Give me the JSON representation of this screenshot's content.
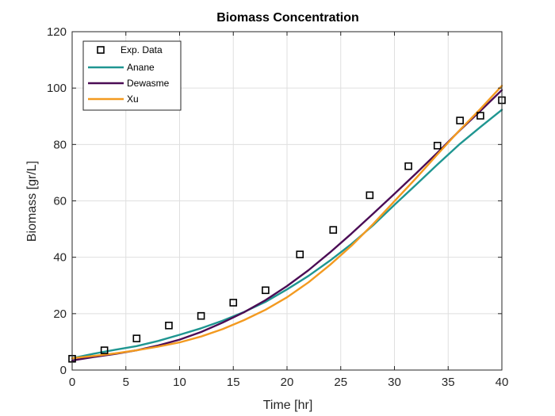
{
  "chart_data": {
    "type": "line",
    "title": "Biomass Concentration",
    "xlabel": "Time [hr]",
    "ylabel": "Biomass [gr/L]",
    "xlim": [
      0,
      40
    ],
    "ylim": [
      0,
      120
    ],
    "xticks": [
      0,
      5,
      10,
      15,
      20,
      25,
      30,
      35,
      40
    ],
    "yticks": [
      0,
      20,
      40,
      60,
      80,
      100,
      120
    ],
    "grid": true,
    "legend_position": "top-left",
    "scatter": {
      "name": "Exp. Data",
      "marker": "square",
      "color": "#000000",
      "x": [
        0,
        3,
        6,
        9,
        12,
        15,
        18,
        21.2,
        24.3,
        27.7,
        31.3,
        34,
        36.1,
        38,
        40
      ],
      "y": [
        4,
        7,
        11.2,
        15.8,
        19.2,
        23.9,
        28.3,
        41,
        49.7,
        62,
        72.3,
        79.6,
        88.5,
        90.2,
        95.7
      ]
    },
    "series": [
      {
        "name": "Anane",
        "color": "#1f9691",
        "x": [
          0,
          2,
          4,
          6,
          8,
          10,
          12,
          14,
          16,
          18,
          20,
          22,
          24,
          26,
          28,
          30,
          32,
          34,
          36,
          38,
          40
        ],
        "y": [
          4.2,
          5.8,
          7.2,
          8.5,
          10.3,
          12.5,
          14.8,
          17.5,
          20.6,
          24.2,
          28.6,
          33.4,
          38.8,
          44.7,
          51.3,
          58.6,
          65.7,
          72.9,
          79.9,
          86.2,
          92.3
        ]
      },
      {
        "name": "Dewasme",
        "color": "#4b0c55",
        "x": [
          0,
          2,
          4,
          6,
          8,
          10,
          12,
          14,
          16,
          18,
          20,
          22,
          24,
          26,
          28,
          30,
          32,
          34,
          36,
          38,
          40
        ],
        "y": [
          3.4,
          4.6,
          5.7,
          7,
          8.7,
          10.8,
          13.5,
          16.8,
          20.5,
          24.8,
          29.8,
          35.4,
          41.7,
          48.4,
          55.4,
          62.5,
          69.7,
          77.1,
          84.7,
          91.9,
          99.3
        ]
      },
      {
        "name": "Xu",
        "color": "#f39a20",
        "x": [
          0,
          2,
          4,
          6,
          8,
          10,
          12,
          14,
          16,
          18,
          20,
          22,
          24,
          26,
          28,
          30,
          32,
          34,
          36,
          38,
          40
        ],
        "y": [
          4.2,
          5,
          5.9,
          7,
          8.3,
          9.8,
          11.9,
          14.5,
          17.7,
          21.4,
          25.8,
          31.1,
          37.3,
          44.1,
          51.7,
          59.9,
          68,
          76.5,
          84.8,
          92.6,
          100.8
        ]
      }
    ]
  }
}
